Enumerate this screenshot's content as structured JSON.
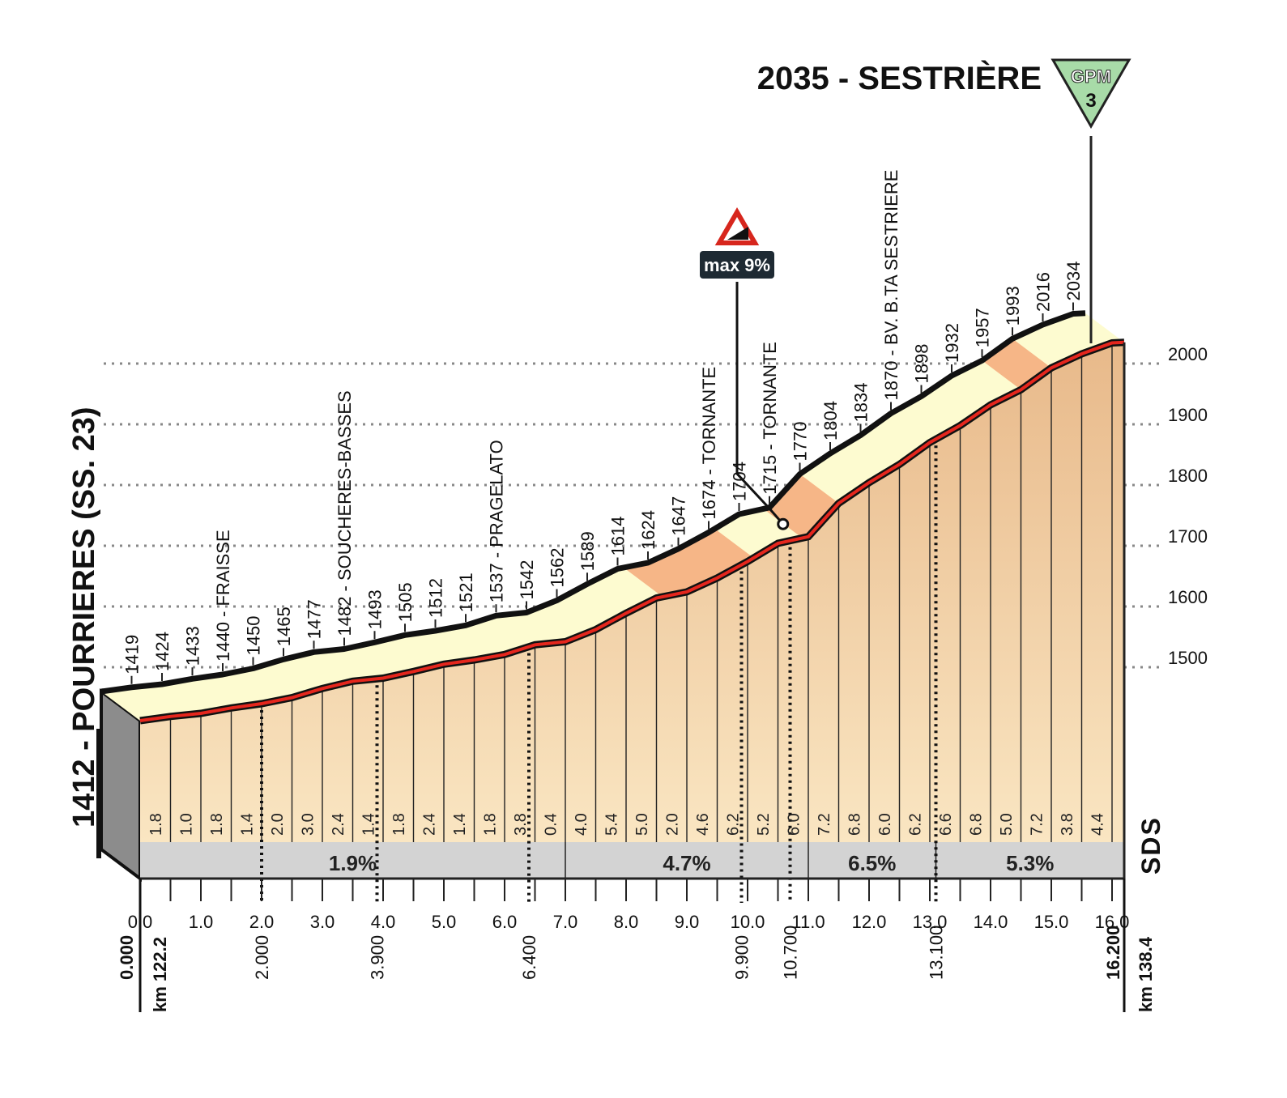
{
  "start": {
    "label": "1412 - POURRIERES (SS. 23)",
    "km": "km 122.2",
    "dist": "0.000"
  },
  "finish": {
    "label": "2035 - SESTRIÈRE",
    "km": "km 138.4",
    "dist": "16.200"
  },
  "gpm": {
    "text": "GPM",
    "category": "3",
    "color": "#a8dba8"
  },
  "max_grade": "max 9%",
  "brand": "SDS",
  "colors": {
    "profile_top": "#fdfbd0",
    "profile_low": "#f1cf99",
    "steep_band": "#f4a97a",
    "road_red": "#e5261d",
    "bottom_band": "#d3d3d3"
  },
  "chart_data": {
    "type": "area",
    "title": "2035 - SESTRIÈRE",
    "xlabel": "",
    "ylabel": "",
    "xlim": [
      0,
      16.2
    ],
    "ylim": [
      1412,
      2035
    ],
    "x_ticks": [
      "0.0",
      "1.0",
      "2.0",
      "3.0",
      "4.0",
      "5.0",
      "6.0",
      "7.0",
      "8.0",
      "9.0",
      "10.0",
      "11.0",
      "12.0",
      "13.0",
      "14.0",
      "15.0",
      "16.0"
    ],
    "y_ticks": [
      "2000",
      "1900",
      "1800",
      "1700",
      "1600",
      "1500"
    ],
    "series": [
      {
        "x": [
          0,
          0.5,
          1.0,
          1.5,
          2.0,
          2.5,
          3.0,
          3.5,
          4.0,
          4.5,
          5.0,
          5.5,
          6.0,
          6.5,
          7.0,
          7.5,
          8.0,
          8.5,
          9.0,
          9.5,
          10.0,
          10.5,
          11.0,
          11.5,
          12.0,
          12.5,
          13.0,
          13.5,
          14.0,
          14.5,
          15.0,
          15.5,
          16.0,
          16.2
        ],
        "y": [
          1412,
          1419,
          1424,
          1433,
          1440,
          1450,
          1465,
          1477,
          1482,
          1493,
          1505,
          1512,
          1521,
          1537,
          1542,
          1562,
          1589,
          1614,
          1624,
          1647,
          1674,
          1704,
          1715,
          1770,
          1804,
          1834,
          1870,
          1898,
          1932,
          1957,
          1993,
          2016,
          2034,
          2035
        ]
      }
    ],
    "point_labels": [
      {
        "km": 0.5,
        "text": "1419"
      },
      {
        "km": 1.0,
        "text": "1424"
      },
      {
        "km": 1.5,
        "text": "1433"
      },
      {
        "km": 2.0,
        "text": "1440 - FRAISSE"
      },
      {
        "km": 2.5,
        "text": "1450"
      },
      {
        "km": 3.0,
        "text": "1465"
      },
      {
        "km": 3.5,
        "text": "1477"
      },
      {
        "km": 4.0,
        "text": "1482 - SOUCHERES-BASSES"
      },
      {
        "km": 4.5,
        "text": "1493"
      },
      {
        "km": 5.0,
        "text": "1505"
      },
      {
        "km": 5.5,
        "text": "1512"
      },
      {
        "km": 6.0,
        "text": "1521"
      },
      {
        "km": 6.5,
        "text": "1537 - PRAGELATO"
      },
      {
        "km": 7.0,
        "text": "1542"
      },
      {
        "km": 7.5,
        "text": "1562"
      },
      {
        "km": 8.0,
        "text": "1589"
      },
      {
        "km": 8.5,
        "text": "1614"
      },
      {
        "km": 9.0,
        "text": "1624"
      },
      {
        "km": 9.5,
        "text": "1647"
      },
      {
        "km": 10.0,
        "text": "1674 - TORNANTE"
      },
      {
        "km": 10.5,
        "text": "1704"
      },
      {
        "km": 11.0,
        "text": "1715 - TORNANTE"
      },
      {
        "km": 11.5,
        "text": "1770"
      },
      {
        "km": 12.0,
        "text": "1804"
      },
      {
        "km": 12.5,
        "text": "1834"
      },
      {
        "km": 13.0,
        "text": "1870 - BV. B.TA SESTRIERE"
      },
      {
        "km": 13.5,
        "text": "1898"
      },
      {
        "km": 14.0,
        "text": "1932"
      },
      {
        "km": 14.5,
        "text": "1957"
      },
      {
        "km": 15.0,
        "text": "1993"
      },
      {
        "km": 15.5,
        "text": "2016"
      },
      {
        "km": 16.0,
        "text": "2034"
      }
    ],
    "segment_gradients": [
      "1.8",
      "1.0",
      "1.8",
      "1.4",
      "2.0",
      "3.0",
      "2.4",
      "1.4",
      "1.8",
      "2.4",
      "1.4",
      "1.8",
      "3.8",
      "0.4",
      "4.0",
      "5.4",
      "5.0",
      "2.0",
      "4.6",
      "6.2",
      "5.2",
      "6.0",
      "7.2",
      "6.8",
      "6.0",
      "6.2",
      "6.6",
      "6.8",
      "5.0",
      "7.2",
      "3.8",
      "4.4"
    ],
    "section_averages": [
      {
        "from": 0,
        "to": 7.0,
        "text": "1.9%"
      },
      {
        "from": 7.0,
        "to": 11.0,
        "text": "4.7%"
      },
      {
        "from": 11.0,
        "to": 13.1,
        "text": "6.5%"
      },
      {
        "from": 13.1,
        "to": 16.2,
        "text": "5.3%"
      }
    ],
    "partial_distances": [
      "2.000",
      "3.900",
      "6.400",
      "9.900",
      "10.700",
      "13.100"
    ],
    "partial_positions_km": [
      2.0,
      3.9,
      6.4,
      9.9,
      10.7,
      13.1
    ],
    "max_grade_at_km": 10.85,
    "steep_sections_km": [
      [
        8.6,
        10.1
      ],
      [
        10.9,
        11.5
      ],
      [
        14.5,
        15.0
      ]
    ]
  }
}
